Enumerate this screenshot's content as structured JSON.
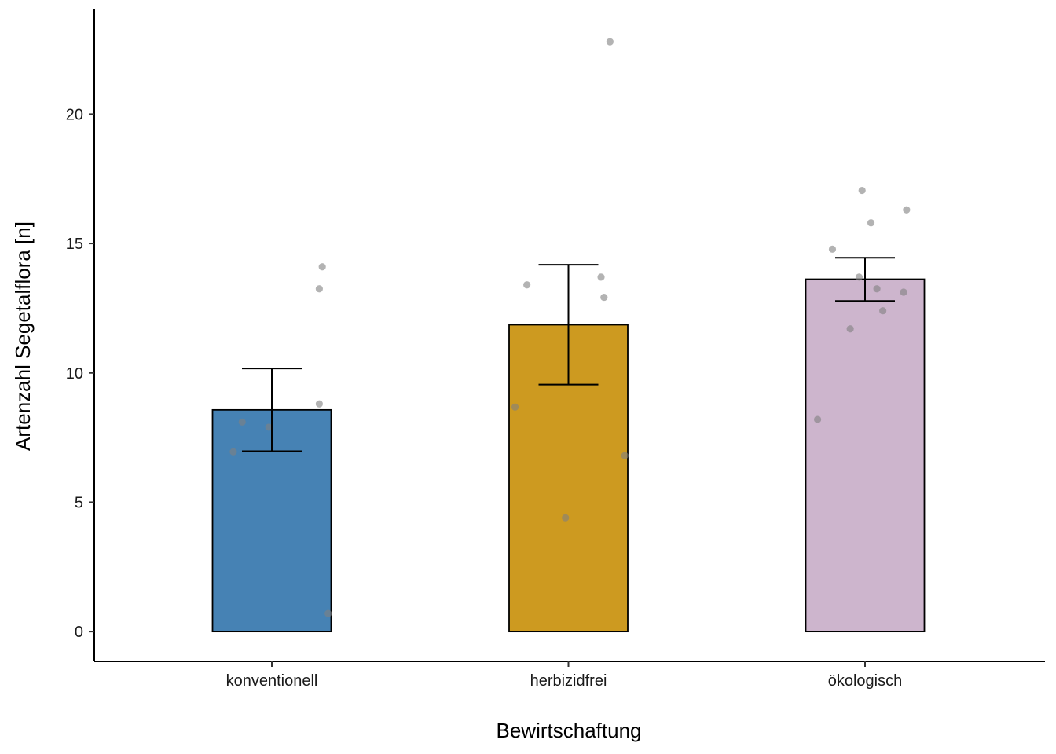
{
  "chart_data": {
    "type": "bar",
    "xlabel": "Bewirtschaftung",
    "ylabel": "Artenzahl Segetalflora [n]",
    "categories": [
      "konventionell",
      "herbizidfrei",
      "ökologisch"
    ],
    "values": [
      8.57,
      11.86,
      13.62
    ],
    "error_bars": [
      {
        "low": 6.97,
        "high": 10.17
      },
      {
        "low": 9.55,
        "high": 14.18
      },
      {
        "low": 12.78,
        "high": 14.45
      }
    ],
    "colors": [
      "#4682b4",
      "#cd9a20",
      "#cdb5cd"
    ],
    "points": [
      [
        {
          "offset": -0.13,
          "y": 6.95
        },
        {
          "offset": -0.1,
          "y": 8.1
        },
        {
          "offset": -0.01,
          "y": 7.9
        },
        {
          "offset": 0.16,
          "y": 13.25
        },
        {
          "offset": 0.17,
          "y": 14.1
        },
        {
          "offset": 0.16,
          "y": 8.8
        },
        {
          "offset": 0.19,
          "y": 0.7
        }
      ],
      [
        {
          "offset": -0.18,
          "y": 8.68
        },
        {
          "offset": -0.14,
          "y": 13.4
        },
        {
          "offset": -0.01,
          "y": 4.4
        },
        {
          "offset": 0.11,
          "y": 13.7
        },
        {
          "offset": 0.12,
          "y": 12.92
        },
        {
          "offset": 0.14,
          "y": 22.8
        },
        {
          "offset": 0.19,
          "y": 6.8
        }
      ],
      [
        {
          "offset": -0.16,
          "y": 8.2
        },
        {
          "offset": -0.11,
          "y": 14.78
        },
        {
          "offset": -0.05,
          "y": 11.7
        },
        {
          "offset": -0.02,
          "y": 13.7
        },
        {
          "offset": -0.01,
          "y": 17.05
        },
        {
          "offset": 0.02,
          "y": 15.8
        },
        {
          "offset": 0.04,
          "y": 13.25
        },
        {
          "offset": 0.06,
          "y": 12.4
        },
        {
          "offset": 0.13,
          "y": 13.12
        },
        {
          "offset": 0.14,
          "y": 16.3
        }
      ]
    ],
    "point_color": "#808080",
    "ylim": [
      -1.15,
      24.05
    ],
    "yticks": [
      0,
      5,
      10,
      15,
      20
    ],
    "grid": false,
    "legend": "none"
  }
}
